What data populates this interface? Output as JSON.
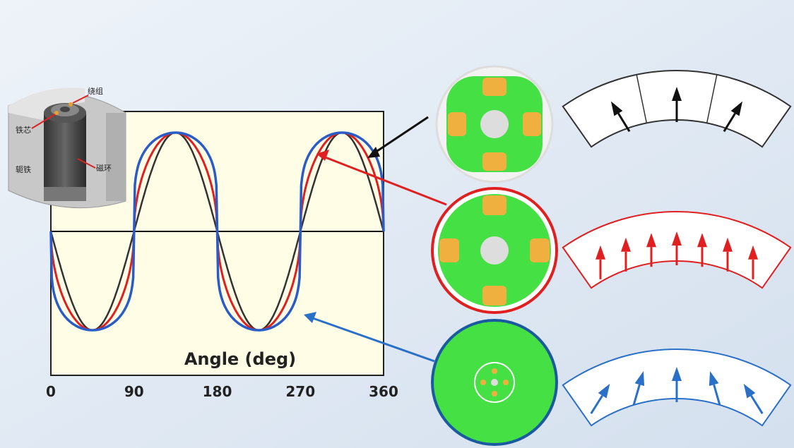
{
  "figure": {
    "plot": {
      "x_label": "Angle (deg)",
      "x_ticks": [
        0,
        90,
        180,
        270,
        360
      ]
    },
    "motor_labels": {
      "winding": "绕组",
      "core": "铁芯",
      "yoke": "轭铁",
      "magnet_ring": "磁环"
    }
  }
}
